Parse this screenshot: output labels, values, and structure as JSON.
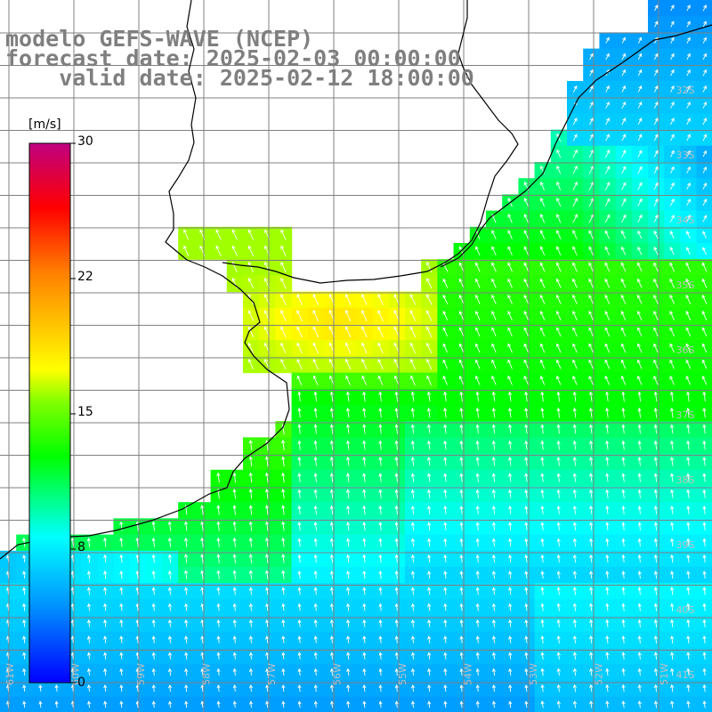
{
  "title": {
    "line1": "modelo GEFS-WAVE (NCEP)",
    "line2": "forecast date: 2025-02-03 00:00:00",
    "line3": "    valid date: 2025-02-12 18:00:00"
  },
  "colorbar": {
    "unit": "[m/s]",
    "ticks": [
      "30",
      "22",
      "15",
      "8",
      "0"
    ],
    "values": [
      30,
      22,
      15,
      8,
      0
    ],
    "colors": [
      "#0000ff",
      "#0090ff",
      "#00ffff",
      "#00ff00",
      "#ffff00",
      "#ff8000",
      "#ff0000",
      "#c00080"
    ]
  },
  "lat_labels": [
    "32S",
    "33S",
    "34S",
    "35S",
    "36S",
    "37S",
    "38S",
    "39S",
    "40S",
    "41S"
  ],
  "lon_labels": [
    "61W",
    "60W",
    "59W",
    "58W",
    "57W",
    "56W",
    "55W",
    "54W",
    "53W",
    "52W",
    "51W"
  ],
  "colors": {
    "land": "#ffffff",
    "grid": "#808080",
    "coast": "#000000",
    "arrows": "#ffffff",
    "title": "#7f7f7f"
  }
}
